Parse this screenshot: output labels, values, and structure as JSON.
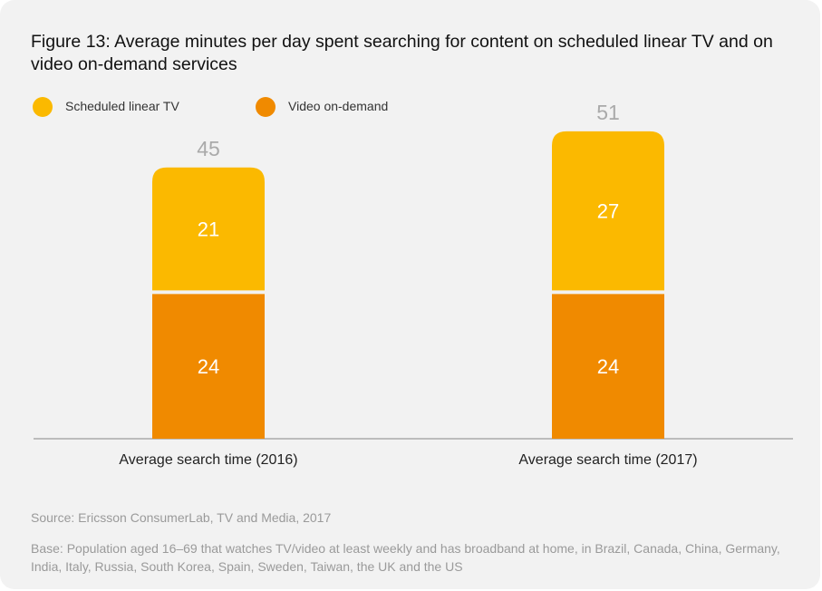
{
  "figure": {
    "title": "Figure 13: Average minutes per day spent searching for content on scheduled linear TV and on video on-demand services",
    "source": "Source: Ericsson ConsumerLab, TV and Media, 2017",
    "base": "Base: Population aged 16–69 that watches TV/video at least weekly and has broadband at home, in Brazil, Canada, China, Germany, India, Italy, Russia, South Korea, Spain, Sweden, Taiwan, the UK and the US"
  },
  "legend": [
    {
      "label": "Scheduled linear TV",
      "color": "#fbb900"
    },
    {
      "label": "Video on-demand",
      "color": "#f08a00"
    }
  ],
  "chart_data": {
    "type": "bar",
    "stacked": true,
    "categories": [
      "Average search time (2016)",
      "Average search time (2017)"
    ],
    "series": [
      {
        "name": "Video on-demand",
        "values": [
          24,
          24
        ],
        "color": "#f08a00"
      },
      {
        "name": "Scheduled linear TV",
        "values": [
          21,
          27
        ],
        "color": "#fbb900"
      }
    ],
    "totals": [
      45,
      51
    ],
    "title": "Figure 13: Average minutes per day spent searching for content on scheduled linear TV and on video on-demand services",
    "xlabel": "",
    "ylabel": "",
    "ylim": [
      0,
      51
    ],
    "grid": false,
    "legend_position": "top-left",
    "axis_color": "#aaaaaa",
    "total_label_color": "#aaaaaa"
  }
}
